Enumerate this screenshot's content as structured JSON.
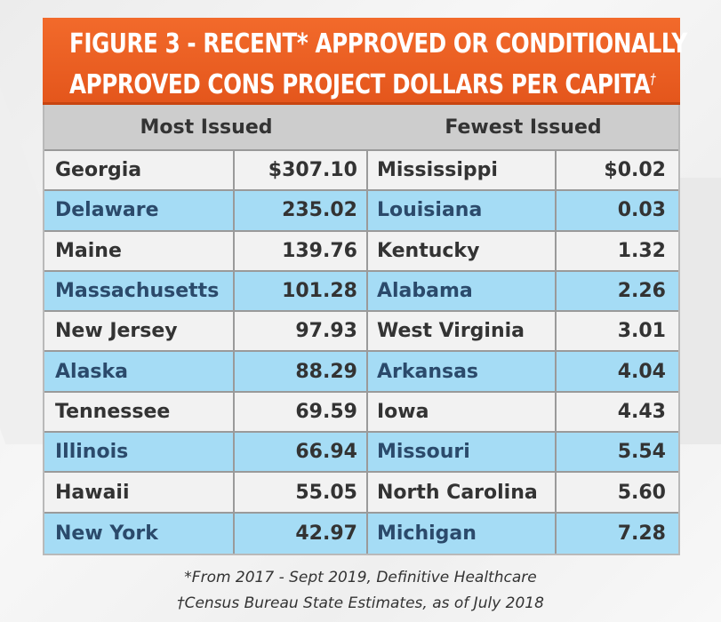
{
  "title": {
    "line1": "FIGURE 3 - RECENT* APPROVED OR CONDITIONALLY",
    "line2": "APPROVED CONs PROJECT DOLLARS PER CAPITA",
    "dagger": "†"
  },
  "headers": {
    "most": "Most Issued",
    "fewest": "Fewest Issued"
  },
  "rows": [
    {
      "most_state": "Georgia",
      "most_value": "$307.10",
      "fewest_state": "Mississippi",
      "fewest_value": "$0.02"
    },
    {
      "most_state": "Delaware",
      "most_value": "235.02",
      "fewest_state": "Louisiana",
      "fewest_value": "0.03"
    },
    {
      "most_state": "Maine",
      "most_value": "139.76",
      "fewest_state": "Kentucky",
      "fewest_value": "1.32"
    },
    {
      "most_state": "Massachusetts",
      "most_value": "101.28",
      "fewest_state": "Alabama",
      "fewest_value": "2.26"
    },
    {
      "most_state": "New Jersey",
      "most_value": "97.93",
      "fewest_state": "West Virginia",
      "fewest_value": "3.01"
    },
    {
      "most_state": "Alaska",
      "most_value": "88.29",
      "fewest_state": "Arkansas",
      "fewest_value": "4.04"
    },
    {
      "most_state": "Tennessee",
      "most_value": "69.59",
      "fewest_state": "Iowa",
      "fewest_value": "4.43"
    },
    {
      "most_state": "Illinois",
      "most_value": "66.94",
      "fewest_state": "Missouri",
      "fewest_value": "5.54"
    },
    {
      "most_state": "Hawaii",
      "most_value": "55.05",
      "fewest_state": "North Carolina",
      "fewest_value": "5.60"
    },
    {
      "most_state": "New York",
      "most_value": "42.97",
      "fewest_state": "Michigan",
      "fewest_value": "7.28"
    }
  ],
  "footnotes": {
    "line1": "*From 2017 - Sept 2019, Definitive Healthcare",
    "line2": "†Census Bureau State Estimates, as of July 2018"
  },
  "colors": {
    "title_bar": "#f26a2b",
    "header_bg": "#cdcdcd",
    "row_light": "#f2f2f2",
    "row_blue": "#a5dcf5"
  }
}
